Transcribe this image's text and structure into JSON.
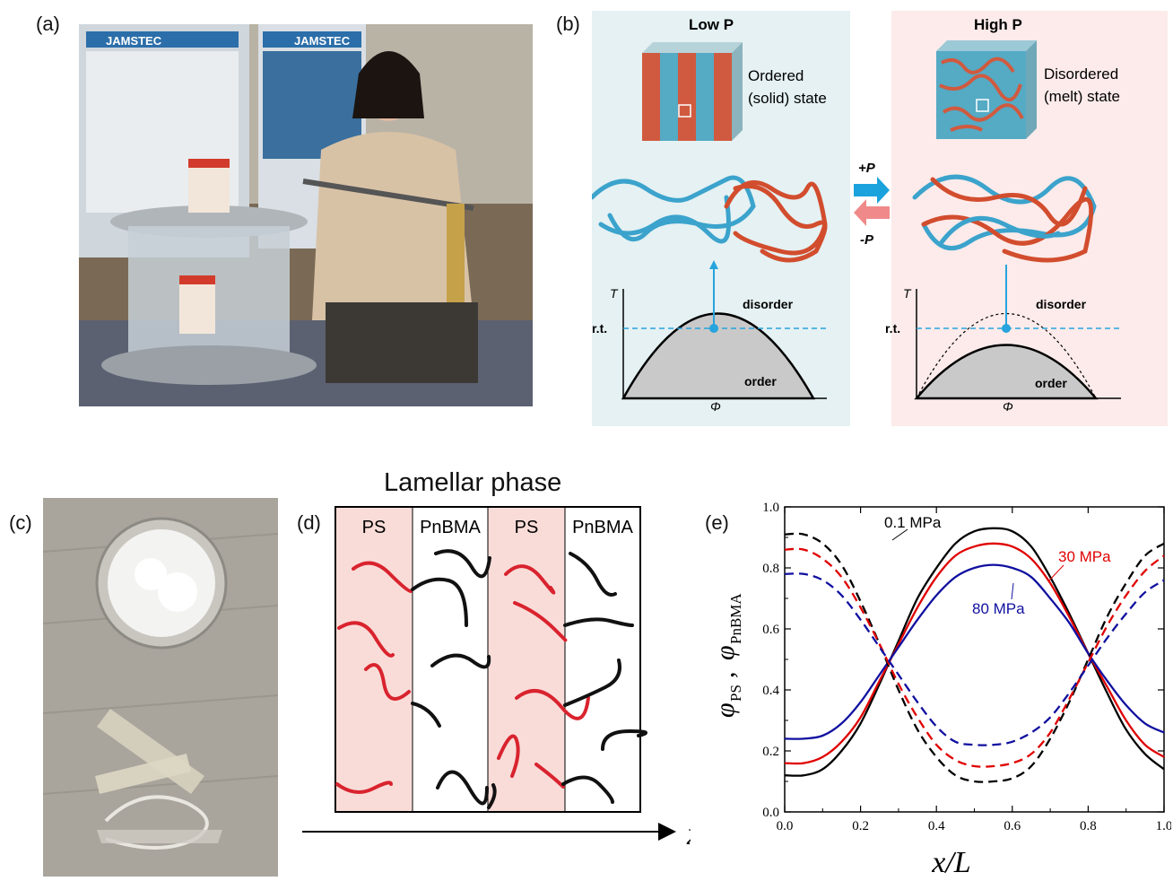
{
  "panels": {
    "a": {
      "label": "(a)",
      "banner_1": "JAMSTEC",
      "banner_2": "JAMSTEC"
    },
    "b": {
      "label": "(b)",
      "low_title": "Low P",
      "high_title": "High P",
      "ordered_state_line1": "Ordered",
      "ordered_state_line2": "(solid) state",
      "disordered_state_line1": "Disordered",
      "disordered_state_line2": "(melt) state",
      "plus_p": "+P",
      "minus_p": "-P",
      "T_axis": "T",
      "phi_axis": "Φ",
      "rt_label": "r.t.",
      "disorder_label": "disorder",
      "order_label": "order"
    },
    "c": {
      "label": "(c)"
    },
    "d": {
      "label": "(d)",
      "title": "Lamellar phase",
      "columns": [
        "PS",
        "PnBMA",
        "PS",
        "PnBMA"
      ],
      "x_axis": "x"
    },
    "e": {
      "label": "(e)",
      "xlabel": "x/L",
      "ylabel_phi": "φ",
      "ylabel_ps": "PS",
      "ylabel_pnbma": "PnBMA",
      "ylabel_sep": ",",
      "line_labels": [
        "0.1 MPa",
        "30 MPa",
        "80 MPa"
      ]
    }
  },
  "colors": {
    "ps_red": "#d9232e",
    "pnbma_black": "#111111",
    "blue": "#1d1d9e",
    "panel_b_low_bg": "#e5f1f3",
    "panel_b_high_bg": "#fcebea",
    "lamella_pink": "#f9dcd8"
  },
  "chart_data": {
    "type": "line",
    "title": "",
    "xlabel": "x/L",
    "ylabel": "φPS, φPnBMA",
    "xlim": [
      0.0,
      1.0
    ],
    "ylim": [
      0.0,
      1.0
    ],
    "xticks": [
      "0.0",
      "0.2",
      "0.4",
      "0.6",
      "0.8",
      "1.0"
    ],
    "yticks": [
      "0.0",
      "0.2",
      "0.4",
      "0.6",
      "0.8",
      "1.0"
    ],
    "x": [
      0.0,
      0.05,
      0.1,
      0.15,
      0.2,
      0.25,
      0.3,
      0.35,
      0.4,
      0.45,
      0.5,
      0.55,
      0.6,
      0.65,
      0.7,
      0.75,
      0.8,
      0.85,
      0.9,
      0.95,
      1.0
    ],
    "series": [
      {
        "name": "0.1 MPa",
        "component": "PS",
        "color": "#000000",
        "style": "solid",
        "values": [
          0.12,
          0.12,
          0.14,
          0.2,
          0.29,
          0.42,
          0.56,
          0.7,
          0.8,
          0.88,
          0.92,
          0.93,
          0.92,
          0.87,
          0.77,
          0.65,
          0.52,
          0.39,
          0.27,
          0.19,
          0.14
        ]
      },
      {
        "name": "30 MPa",
        "component": "PS",
        "color": "#e00000",
        "style": "solid",
        "values": [
          0.16,
          0.16,
          0.18,
          0.23,
          0.31,
          0.43,
          0.55,
          0.67,
          0.77,
          0.84,
          0.87,
          0.88,
          0.87,
          0.83,
          0.75,
          0.64,
          0.52,
          0.41,
          0.3,
          0.22,
          0.18
        ]
      },
      {
        "name": "80 MPa",
        "component": "PS",
        "color": "#1010a0",
        "style": "solid",
        "values": [
          0.24,
          0.24,
          0.25,
          0.29,
          0.36,
          0.45,
          0.54,
          0.63,
          0.71,
          0.77,
          0.8,
          0.81,
          0.8,
          0.77,
          0.7,
          0.62,
          0.52,
          0.43,
          0.35,
          0.29,
          0.26
        ]
      },
      {
        "name": "",
        "component": "PnBMA",
        "color": "#000000",
        "style": "dashed",
        "values": [
          0.91,
          0.91,
          0.88,
          0.81,
          0.69,
          0.55,
          0.4,
          0.27,
          0.18,
          0.12,
          0.1,
          0.1,
          0.11,
          0.15,
          0.24,
          0.36,
          0.5,
          0.64,
          0.75,
          0.84,
          0.88
        ]
      },
      {
        "name": "",
        "component": "PnBMA",
        "color": "#e00000",
        "style": "dashed",
        "values": [
          0.86,
          0.86,
          0.83,
          0.77,
          0.67,
          0.55,
          0.42,
          0.31,
          0.22,
          0.17,
          0.15,
          0.15,
          0.16,
          0.19,
          0.26,
          0.37,
          0.49,
          0.61,
          0.71,
          0.79,
          0.84
        ]
      },
      {
        "name": "",
        "component": "PnBMA",
        "color": "#1010a0",
        "style": "dashed",
        "values": [
          0.78,
          0.78,
          0.76,
          0.71,
          0.63,
          0.54,
          0.45,
          0.36,
          0.28,
          0.23,
          0.22,
          0.22,
          0.23,
          0.26,
          0.31,
          0.39,
          0.48,
          0.57,
          0.65,
          0.72,
          0.76
        ]
      }
    ],
    "grid": false,
    "legend": "inline labels"
  }
}
